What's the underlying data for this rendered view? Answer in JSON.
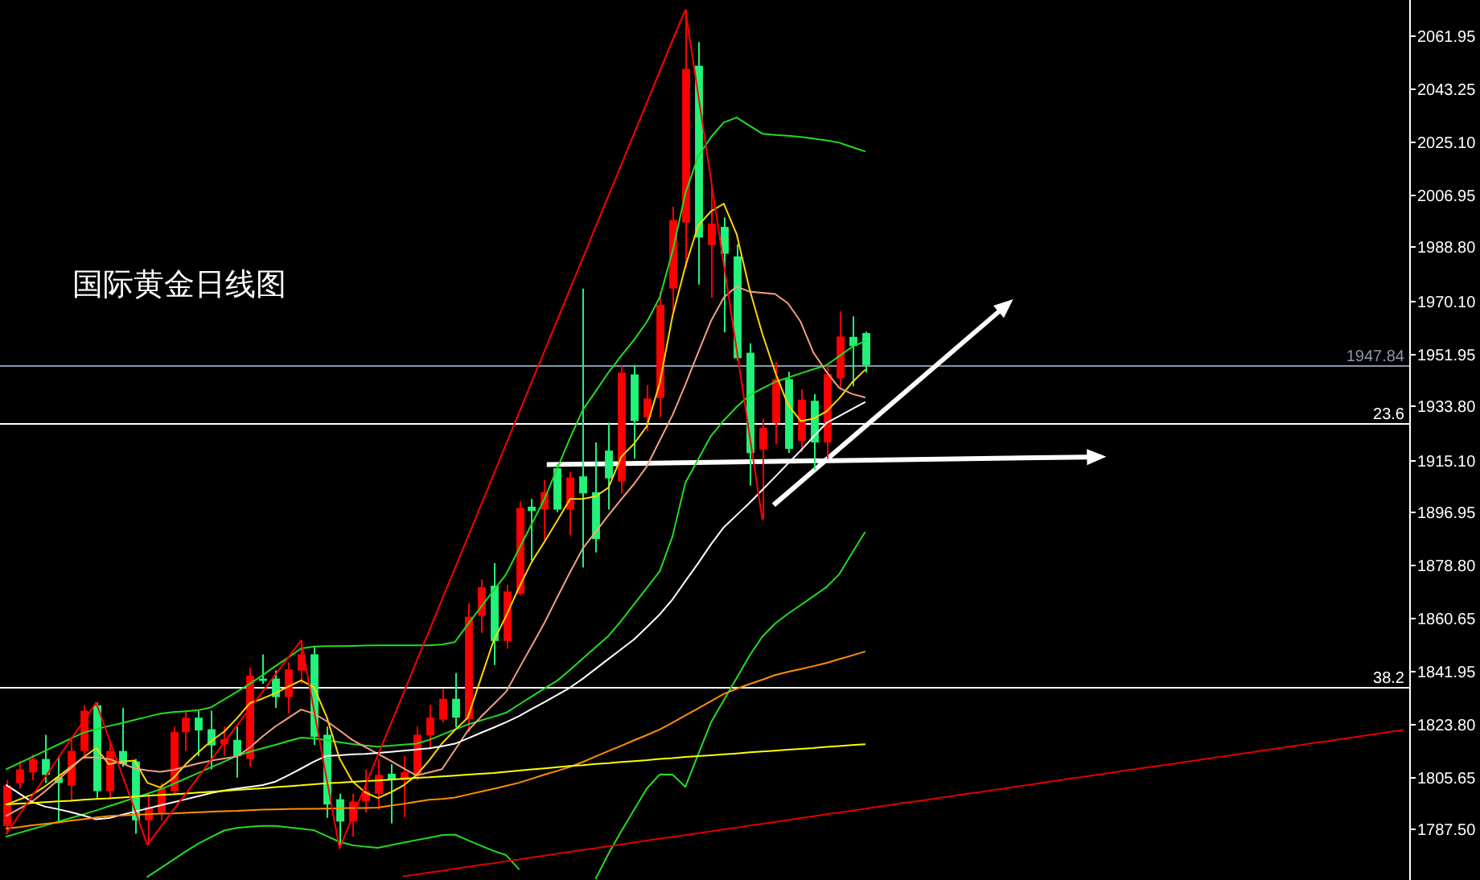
{
  "chart_data": {
    "type": "candlestick",
    "title": "国际黄金日线图",
    "categories": [
      null,
      null,
      null,
      null,
      null,
      null,
      null,
      null,
      null,
      null,
      null,
      null,
      null,
      null,
      null,
      null,
      null,
      null,
      null,
      null,
      null,
      null,
      null,
      null,
      null,
      null,
      null,
      null,
      null,
      null,
      null,
      null,
      null,
      null,
      null,
      null,
      null,
      null,
      null,
      null,
      null,
      null,
      null,
      null,
      null,
      null,
      null,
      null,
      null,
      null,
      null,
      null,
      null,
      null,
      null,
      null,
      null,
      null,
      null,
      null,
      null,
      null,
      null,
      null,
      null,
      null,
      null,
      null,
      null,
      null,
      null,
      null,
      null,
      null,
      null,
      null,
      null,
      null,
      null,
      null,
      null,
      null,
      null,
      null,
      null,
      null,
      null,
      null,
      null,
      null,
      null,
      null,
      null,
      null,
      null,
      null,
      null,
      null,
      null,
      null,
      null,
      null,
      null,
      null,
      null,
      null,
      null,
      null,
      null,
      null
    ],
    "ohlc": [
      [
        1788.6,
        1804.4,
        1785.9,
        1802.5
      ],
      [
        1803.4,
        1811.0,
        1801.6,
        1808.1
      ],
      [
        1807.1,
        1813.2,
        1804.4,
        1811.7
      ],
      [
        1811.7,
        1820.1,
        1803.4,
        1806.2
      ],
      [
        1805.3,
        1812.7,
        1789.5,
        1803.4
      ],
      [
        1802.5,
        1819.4,
        1797.1,
        1814.5
      ],
      [
        1814.5,
        1830.3,
        1811.7,
        1828.4
      ],
      [
        1830.3,
        1831.2,
        1797.8,
        1800.6
      ],
      [
        1800.6,
        1817.3,
        1797.8,
        1814.5
      ],
      [
        1814.5,
        1829.4,
        1809.0,
        1809.9
      ],
      [
        1810.9,
        1811.7,
        1785.9,
        1790.5
      ],
      [
        1790.5,
        1799.7,
        1782.1,
        1795.1
      ],
      [
        1793.2,
        1803.4,
        1790.5,
        1801.6
      ],
      [
        1800.6,
        1822.9,
        1799.7,
        1821.0
      ],
      [
        1821.0,
        1828.4,
        1814.5,
        1826.0
      ],
      [
        1826.0,
        1828.4,
        1812.7,
        1821.6
      ],
      [
        1822.0,
        1828.4,
        1808.1,
        1816.4
      ],
      [
        1816.8,
        1822.9,
        1812.7,
        1818.6
      ],
      [
        1818.3,
        1822.9,
        1805.3,
        1812.7
      ],
      [
        1811.7,
        1843.3,
        1809.0,
        1840.5
      ],
      [
        1839.5,
        1847.9,
        1837.7,
        1838.7
      ],
      [
        1839.5,
        1842.3,
        1829.4,
        1833.1
      ],
      [
        1833.1,
        1845.1,
        1827.5,
        1842.7
      ],
      [
        1842.3,
        1852.7,
        1837.7,
        1847.9
      ],
      [
        1847.9,
        1850.7,
        1816.6,
        1819.4
      ],
      [
        1820.1,
        1822.9,
        1791.4,
        1796.0
      ],
      [
        1797.8,
        1799.7,
        1781.2,
        1790.1
      ],
      [
        1790.1,
        1799.7,
        1784.9,
        1797.0
      ],
      [
        1797.1,
        1808.1,
        1793.2,
        1800.6
      ],
      [
        1799.7,
        1811.6,
        1794.3,
        1806.2
      ],
      [
        1806.6,
        1809.9,
        1789.5,
        1804.4
      ],
      [
        1804.4,
        1812.7,
        1791.6,
        1807.1
      ],
      [
        1806.2,
        1822.9,
        1804.4,
        1820.1
      ],
      [
        1819.9,
        1830.5,
        1814.9,
        1826.0
      ],
      [
        1825.3,
        1835.9,
        1824.4,
        1832.5
      ],
      [
        1832.5,
        1841.4,
        1822.7,
        1826.0
      ],
      [
        1825.6,
        1865.5,
        1821.0,
        1860.9
      ],
      [
        1861.2,
        1873.8,
        1855.3,
        1871.1
      ],
      [
        1871.6,
        1879.4,
        1844.2,
        1852.5
      ],
      [
        1852.5,
        1872.0,
        1849.8,
        1869.6
      ],
      [
        1868.8,
        1900.7,
        1868.3,
        1898.5
      ],
      [
        1898.9,
        1901.6,
        1880.3,
        1897.4
      ],
      [
        1897.9,
        1908.1,
        1887.3,
        1903.9
      ],
      [
        1912.2,
        1913.7,
        1897.0,
        1897.9
      ],
      [
        1897.9,
        1910.9,
        1889.0,
        1909.0
      ],
      [
        1909.4,
        1974.3,
        1877.9,
        1903.5
      ],
      [
        1903.9,
        1921.1,
        1883.1,
        1887.7
      ],
      [
        1918.3,
        1927.9,
        1897.9,
        1908.7
      ],
      [
        1907.6,
        1947.6,
        1903.5,
        1945.2
      ],
      [
        1944.6,
        1947.9,
        1915.5,
        1928.5
      ],
      [
        1929.8,
        1940.9,
        1925.0,
        1936.3
      ],
      [
        1936.5,
        1973.0,
        1929.8,
        1968.7
      ],
      [
        1974.3,
        2002.6,
        1966.5,
        1998.0
      ],
      [
        1997.1,
        2070.6,
        1981.3,
        2050.2
      ],
      [
        2051.3,
        2059.5,
        1975.7,
        1991.9
      ],
      [
        1989.3,
        2010.0,
        1971.1,
        1996.7
      ],
      [
        1995.6,
        1998.9,
        1959.1,
        1986.3
      ],
      [
        1985.4,
        1989.6,
        1949.4,
        1950.2
      ],
      [
        1952.1,
        1955.4,
        1906.2,
        1917.4
      ],
      [
        1918.7,
        1929.4,
        1894.6,
        1926.1
      ],
      [
        1927.8,
        1948.9,
        1920.5,
        1943.0
      ],
      [
        1943.0,
        1945.5,
        1917.4,
        1918.9
      ],
      [
        1921.6,
        1939.4,
        1917.8,
        1935.9
      ],
      [
        1935.5,
        1937.8,
        1911.6,
        1921.1
      ],
      [
        1921.1,
        1948.3,
        1915.5,
        1944.7
      ],
      [
        1943.3,
        1966.4,
        1939.4,
        1957.7
      ],
      [
        1957.6,
        1964.7,
        1940.5,
        1954.4
      ],
      [
        1958.9,
        1959.4,
        1945.2,
        1947.84
      ],
      null,
      null,
      null,
      null,
      null,
      null,
      null,
      null,
      null,
      null,
      null,
      null,
      null,
      null,
      null,
      null,
      null,
      null,
      null,
      null,
      null,
      null,
      null,
      null,
      null,
      null,
      null,
      null,
      null,
      null,
      null,
      null,
      null,
      null,
      null,
      null,
      null,
      null,
      null,
      null,
      null,
      null
    ],
    "colors": [
      "#ff0000",
      "#ff0000",
      "#ff0000",
      "#22f27a",
      "#22f27a",
      "#ff0000",
      "#ff0000",
      "#22f27a",
      "#ff0000",
      "#22f27a",
      "#22f27a",
      "#ff0000",
      "#ff0000",
      "#ff0000",
      "#ff0000",
      "#22f27a",
      "#22f27a",
      "#ff0000",
      "#22f27a",
      "#ff0000",
      "#22f27a",
      "#22f27a",
      "#ff0000",
      "#ff0000",
      "#22f27a",
      "#22f27a",
      "#22f27a",
      "#ff0000",
      "#ff0000",
      "#ff0000",
      "#22f27a",
      "#ff0000",
      "#ff0000",
      "#ff0000",
      "#ff0000",
      "#22f27a",
      "#ff0000",
      "#ff0000",
      "#22f27a",
      "#ff0000",
      "#ff0000",
      "#22f27a",
      "#ff0000",
      "#22f27a",
      "#ff0000",
      "#22f27a",
      "#22f27a",
      "#22f27a",
      "#ff0000",
      "#22f27a",
      "#ff0000",
      "#ff0000",
      "#ff0000",
      "#ff0000",
      "#22f27a",
      "#ff0000",
      "#22f27a",
      "#22f27a",
      "#22f27a",
      "#ff0000",
      "#ff0000",
      "#22f27a",
      "#ff0000",
      "#22f27a",
      "#ff0000",
      "#ff0000",
      "#22f27a",
      "#22f27a",
      null,
      null,
      null,
      null,
      null,
      null,
      null,
      null,
      null,
      null,
      null,
      null,
      null,
      null,
      null,
      null,
      null,
      null,
      null,
      null,
      null,
      null,
      null,
      null,
      null,
      null,
      null,
      null,
      null,
      null,
      null,
      null,
      null,
      null,
      null,
      null,
      null,
      null,
      null,
      null,
      null,
      null
    ],
    "series": [
      {
        "type": "line",
        "color": "#22dd22",
        "values": [
          1808.2,
          1810.3,
          1812.4,
          1814.5,
          1816.6,
          1818.7,
          1820.8,
          1822.0,
          1823.1,
          1824.1,
          1825.2,
          1826.3,
          1827.4,
          1827.9,
          1828.2,
          1828.6,
          1829.6,
          1832.3,
          1835.0,
          1837.7,
          1840.7,
          1843.8,
          1846.8,
          1849.9,
          1850.6,
          1850.7,
          1850.7,
          1850.8,
          1850.9,
          1851.0,
          1851.0,
          1851.0,
          1851.0,
          1851.0,
          1851.3,
          1852.1,
          1858.1,
          1864.0,
          1869.8,
          1875.5,
          1884.2,
          1892.9,
          1901.6,
          1912.1,
          1922.7,
          1932.4,
          1938.8,
          1945.3,
          1951.1,
          1956.6,
          1962.8,
          1971.3,
          1987.2,
          2007.2,
          2020.0,
          2026.6,
          2031.7,
          2033.4,
          2030.6,
          2027.8,
          2027.4,
          2027.1,
          2026.7,
          2026.1,
          2025.5,
          2024.7,
          2023.2,
          2021.7,
          null,
          null,
          null,
          null,
          null,
          null,
          null,
          null,
          null,
          null,
          null,
          null,
          null,
          null,
          null,
          null,
          null,
          null,
          null,
          null,
          null,
          null,
          null,
          null,
          null,
          null,
          null,
          null,
          null,
          null,
          null,
          null,
          null,
          null,
          null,
          null,
          null,
          null,
          null,
          null,
          null,
          null
        ]
      },
      {
        "type": "line",
        "color": "#22dd22",
        "values": [
          1784.9,
          1786.2,
          1787.5,
          1788.7,
          1790.0,
          1791.3,
          1792.6,
          1793.9,
          1795.4,
          1796.8,
          1798.3,
          1799.7,
          1801.2,
          1803.0,
          1805.0,
          1806.9,
          1808.9,
          1810.8,
          1812.8,
          1814.2,
          1815.4,
          1816.6,
          1817.9,
          1819.1,
          1818.8,
          1818.2,
          1817.5,
          1816.9,
          1816.4,
          1816.0,
          1816.3,
          1816.7,
          1817.0,
          1818.3,
          1820.1,
          1821.9,
          1823.6,
          1825.0,
          1826.3,
          1827.7,
          1830.5,
          1833.3,
          1836.1,
          1838.8,
          1842.5,
          1846.5,
          1850.4,
          1854.3,
          1859.5,
          1865.2,
          1870.9,
          1876.6,
          1888.7,
          1907.2,
          1915.3,
          1923.4,
          1928.7,
          1933.4,
          1937.4,
          1939.8,
          1942.0,
          1943.5,
          1945.0,
          1946.4,
          1947.8,
          1950.9,
          1954.1,
          1956.1,
          null,
          null,
          null,
          null,
          null,
          null,
          null,
          null,
          null,
          null,
          null,
          null,
          null,
          null,
          null,
          null,
          null,
          null,
          null,
          null,
          null,
          null,
          null,
          null,
          null,
          null,
          null,
          null,
          null,
          null,
          null,
          null,
          null,
          null,
          null,
          null,
          null,
          null,
          null,
          null,
          null,
          null
        ]
      },
      {
        "type": "line",
        "color": "#22dd22",
        "values": [
          null,
          null,
          null,
          null,
          null,
          null,
          null,
          null,
          null,
          null,
          null,
          1771.0,
          1773.9,
          1776.8,
          1779.8,
          1782.5,
          1784.8,
          1787.0,
          1787.9,
          1788.3,
          1788.6,
          1788.6,
          1788.1,
          1787.6,
          1787.1,
          1785.1,
          1783.1,
          1781.9,
          1781.4,
          1781.0,
          1781.9,
          1782.8,
          1783.7,
          1784.5,
          1785.4,
          1785.6,
          1783.7,
          1781.8,
          1780.0,
          1778.5,
          1773.7,
          null,
          null,
          null,
          null,
          null,
          1770.4,
          1779.0,
          1786.8,
          1794.2,
          1801.6,
          1806.4,
          1806.3,
          1802.1,
          1813.3,
          1824.4,
          1832.1,
          1839.7,
          1847.4,
          1854.0,
          1858.5,
          1861.9,
          1864.9,
          1868.0,
          1871.1,
          1875.5,
          1882.8,
          1890.0,
          null,
          null,
          null,
          null,
          null,
          null,
          null,
          null,
          null,
          null,
          null,
          null,
          null,
          null,
          null,
          null,
          null,
          null,
          null,
          null,
          null,
          null,
          null,
          null,
          null,
          null,
          null,
          null,
          null,
          null,
          null,
          null,
          null,
          null,
          null,
          null,
          null,
          null,
          null,
          null,
          null,
          null
        ]
      },
      {
        "type": "line",
        "color": "#ffd800",
        "values": [
          1796.0,
          1797.7,
          1799.4,
          1802.2,
          1805.5,
          1808.9,
          1812.2,
          1815.5,
          1809.9,
          1810.8,
          1811.2,
          1803.5,
          1801.9,
          1805.0,
          1809.9,
          1814.1,
          1818.0,
          1821.2,
          1825.8,
          1831.0,
          1832.6,
          1834.5,
          1836.7,
          1838.9,
          1836.6,
          1826.3,
          1811.9,
          1804.0,
          1800.2,
          1798.2,
          1800.2,
          1802.6,
          1806.1,
          1811.2,
          1817.1,
          1821.7,
          1825.9,
          1839.1,
          1852.2,
          1861.1,
          1870.9,
          1879.8,
          1886.8,
          1894.1,
          1901.6,
          1901.6,
          1902.5,
          1905.5,
          1916.2,
          1920.7,
          1926.8,
          1941.7,
          1964.9,
          1982.0,
          1996.1,
          2001.0,
          2003.6,
          1993.1,
          1974.2,
          1958.7,
          1945.5,
          1934.2,
          1928.5,
          1929.3,
          1931.8,
          1936.3,
          1941.8,
          1946.1,
          null,
          null,
          null,
          null,
          null,
          null,
          null,
          null,
          null,
          null,
          null,
          null,
          null,
          null,
          null,
          null,
          null,
          null,
          null,
          null,
          null,
          null,
          null,
          null,
          null,
          null,
          null,
          null,
          null,
          null,
          null,
          null,
          null,
          null,
          null,
          null,
          null,
          null,
          null,
          null,
          null,
          null
        ]
      },
      {
        "type": "line",
        "color": "#f5a080",
        "values": [
          1792.1,
          1794.5,
          1797.0,
          1800.5,
          1804.4,
          1808.4,
          1812.3,
          1812.2,
          1811.7,
          1810.2,
          1808.5,
          1807.8,
          1807.3,
          1807.9,
          1809.1,
          1810.2,
          1811.2,
          1811.9,
          1812.6,
          1815.7,
          1819.5,
          1823.0,
          1825.9,
          1828.8,
          1827.4,
          1824.8,
          1821.6,
          1818.3,
          1815.9,
          1813.5,
          1811.1,
          1808.5,
          1806.0,
          1807.1,
          1808.2,
          1814.8,
          1821.4,
          1826.1,
          1830.5,
          1834.9,
          1842.9,
          1850.8,
          1858.8,
          1867.6,
          1876.3,
          1884.5,
          1890.2,
          1896.0,
          1901.5,
          1906.8,
          1912.9,
          1921.8,
          1930.6,
          1941.1,
          1952.2,
          1963.1,
          1971.2,
          1975.0,
          1973.2,
          1972.8,
          1972.4,
          1969.2,
          1962.8,
          1952.1,
          1945.6,
          1940.0,
          1937.9,
          1936.7,
          null,
          null,
          null,
          null,
          null,
          null,
          null,
          null,
          null,
          null,
          null,
          null,
          null,
          null,
          null,
          null,
          null,
          null,
          null,
          null,
          null,
          null,
          null,
          null,
          null,
          null,
          null,
          null,
          null,
          null,
          null,
          null,
          null,
          null,
          null,
          null,
          null,
          null,
          null,
          null,
          null,
          null
        ]
      },
      {
        "type": "line",
        "color": "#ffffff",
        "values": [
          1802.7,
          1799.8,
          1796.9,
          1795.3,
          1794.4,
          1793.4,
          1792.2,
          1790.9,
          1791.3,
          1792.4,
          1793.5,
          1794.6,
          1795.7,
          1796.7,
          1797.8,
          1798.9,
          1800.0,
          1800.8,
          1801.5,
          1802.1,
          1802.7,
          1803.9,
          1806.1,
          1808.4,
          1810.8,
          1812.8,
          1813.0,
          1813.3,
          1813.5,
          1813.8,
          1814.2,
          1814.6,
          1815.0,
          1815.4,
          1816.1,
          1817.0,
          1818.8,
          1820.7,
          1822.5,
          1824.4,
          1826.5,
          1829.0,
          1831.4,
          1833.9,
          1836.4,
          1839.5,
          1842.9,
          1846.3,
          1849.7,
          1853.1,
          1857.3,
          1861.7,
          1866.9,
          1873.2,
          1879.4,
          1885.9,
          1891.8,
          1896.0,
          1900.2,
          1904.7,
          1909.2,
          1913.8,
          1918.3,
          1923.1,
          1927.8,
          1930.2,
          1932.6,
          1935.0,
          null,
          null,
          null,
          null,
          null,
          null,
          null,
          null,
          null,
          null,
          null,
          null,
          null,
          null,
          null,
          null,
          null,
          null,
          null,
          null,
          null,
          null,
          null,
          null,
          null,
          null,
          null,
          null,
          null,
          null,
          null,
          null,
          null,
          null,
          null,
          null,
          null,
          null,
          null,
          null,
          null,
          null
        ]
      },
      {
        "type": "line",
        "color": "#ff9000",
        "values": [
          1787.7,
          1788.2,
          1788.8,
          1789.3,
          1789.8,
          1790.4,
          1790.9,
          1791.5,
          1792.0,
          1792.2,
          1792.4,
          1792.6,
          1792.8,
          1792.9,
          1793.1,
          1793.3,
          1793.5,
          1793.7,
          1793.8,
          1794.0,
          1794.2,
          1794.3,
          1794.4,
          1794.5,
          1794.5,
          1794.6,
          1794.7,
          1794.8,
          1794.8,
          1794.9,
          1795.6,
          1796.2,
          1796.9,
          1797.6,
          1797.9,
          1798.4,
          1799.4,
          1800.4,
          1801.4,
          1802.4,
          1803.5,
          1804.9,
          1806.3,
          1807.6,
          1809.0,
          1810.7,
          1812.6,
          1814.5,
          1816.3,
          1818.2,
          1820.0,
          1821.9,
          1824.3,
          1826.8,
          1829.2,
          1831.7,
          1834.2,
          1836.0,
          1837.6,
          1839.1,
          1840.7,
          1841.8,
          1842.8,
          1843.8,
          1844.9,
          1846.2,
          1847.5,
          1848.8,
          null,
          null,
          null,
          null,
          null,
          null,
          null,
          null,
          null,
          null,
          null,
          null,
          null,
          null,
          null,
          null,
          null,
          null,
          null,
          null,
          null,
          null,
          null,
          null,
          null,
          null,
          null,
          null,
          null,
          null,
          null,
          null,
          null,
          null,
          null,
          null,
          null,
          null,
          null,
          null,
          null,
          null
        ]
      },
      {
        "type": "line",
        "color": "#ffff00",
        "values": [
          1796.0,
          1796.3,
          1796.5,
          1796.8,
          1797.1,
          1797.3,
          1797.6,
          1797.9,
          1798.1,
          1798.4,
          1798.7,
          1799.0,
          1799.3,
          1799.5,
          1799.8,
          1800.1,
          1800.4,
          1800.7,
          1801.0,
          1801.3,
          1801.6,
          1802.0,
          1802.3,
          1802.6,
          1803.0,
          1803.3,
          1803.5,
          1803.8,
          1804.1,
          1804.3,
          1804.6,
          1804.9,
          1805.2,
          1805.4,
          1805.7,
          1806.0,
          1806.3,
          1806.6,
          1806.9,
          1807.3,
          1807.7,
          1808.1,
          1808.5,
          1808.9,
          1809.3,
          1809.6,
          1810.0,
          1810.3,
          1810.7,
          1811.0,
          1811.3,
          1811.7,
          1812.0,
          1812.4,
          1812.7,
          1813.0,
          1813.3,
          1813.6,
          1814.0,
          1814.3,
          1814.6,
          1814.9,
          1815.2,
          1815.5,
          1815.9,
          1816.2,
          1816.5,
          1816.8,
          null,
          null,
          null,
          null,
          null,
          null,
          null,
          null,
          null,
          null,
          null,
          null,
          null,
          null,
          null,
          null,
          null,
          null,
          null,
          null,
          null,
          null,
          null,
          null,
          null,
          null,
          null,
          null,
          null,
          null,
          null,
          null,
          null,
          null,
          null,
          null,
          null,
          null,
          null,
          null,
          null,
          null
        ]
      },
      {
        "type": "line",
        "color": "#ff0000",
        "values": [
          1785.9,
          1792.4,
          1798.8,
          1805.3,
          1811.8,
          1818.3,
          1824.7,
          1831.2,
          1818.9,
          1806.7,
          1794.4,
          1782.1,
          1788.0,
          1793.9,
          1799.7,
          1805.6,
          1811.5,
          1817.4,
          1823.3,
          1829.2,
          1835.0,
          1840.9,
          1846.8,
          1852.7,
          1828.8,
          1804.8,
          1780.8,
          1791.6,
          1802.3,
          1813.1,
          1823.8,
          1834.5,
          1845.3,
          1856.0,
          1866.8,
          1877.5,
          1888.2,
          1899.0,
          1909.7,
          1920.5,
          1931.2,
          1942.0,
          1952.7,
          1963.4,
          1974.2,
          1984.9,
          1995.7,
          2006.4,
          2017.1,
          2027.9,
          2038.6,
          2049.4,
          2060.1,
          2070.6,
          2041.3,
          2011.9,
          1982.6,
          1953.3,
          1923.9,
          1894.6,
          null,
          null,
          null,
          null,
          null,
          null,
          null,
          null,
          null,
          null,
          null,
          null,
          null,
          null,
          null,
          null,
          null,
          null,
          null,
          null,
          null,
          null,
          null,
          null,
          null,
          null,
          null,
          null,
          null,
          null,
          null,
          null,
          null,
          null,
          null,
          null,
          null,
          null,
          null,
          null,
          null,
          null,
          null,
          null,
          null,
          null,
          null,
          null,
          null,
          null
        ]
      },
      {
        "type": "line",
        "color": "#e00000",
        "values": [
          null,
          null,
          null,
          null,
          null,
          null,
          null,
          null,
          null,
          null,
          null,
          null,
          null,
          null,
          null,
          null,
          null,
          null,
          null,
          null,
          null,
          null,
          null,
          null,
          null,
          null,
          null,
          null,
          null,
          null,
          null,
          1771.2,
          1771.8,
          1772.5,
          1773.1,
          1773.8,
          1774.4,
          1775.1,
          1775.7,
          1776.4,
          1777.0,
          1777.7,
          1778.3,
          1779.0,
          1779.6,
          1780.3,
          1780.9,
          1781.6,
          1782.2,
          1782.9,
          1783.5,
          1784.2,
          1784.8,
          1785.4,
          1786.1,
          1786.7,
          1787.4,
          1788.0,
          1788.7,
          1789.3,
          1790.0,
          1790.6,
          1791.3,
          1791.9,
          1792.6,
          1793.2,
          1793.9,
          1794.5,
          1795.2,
          1795.8,
          1796.5,
          1797.1,
          1797.7,
          1798.4,
          1799.0,
          1799.7,
          1800.3,
          1801.0,
          1801.6,
          1802.3,
          1802.9,
          1803.6,
          1804.2,
          1804.9,
          1805.5,
          1806.2,
          1806.8,
          1807.5,
          1808.1,
          1808.8,
          1809.4,
          1810.0,
          1810.7,
          1811.3,
          1812.0,
          1812.6,
          1813.3,
          1813.9,
          1814.6,
          1815.2,
          1815.9,
          1816.5,
          1817.2,
          1817.8,
          1818.5,
          1819.1,
          1819.8,
          1820.4,
          1821.1,
          1821.7
        ]
      }
    ],
    "ylim": [
      1769.9,
      2074.0
    ],
    "yticks": [
      2061.95,
      2043.25,
      {
        "value": 2025.1,
        "label": "2025.10"
      },
      2006.95,
      {
        "value": 1988.8,
        "label": "1988.80"
      },
      {
        "value": 1970.1,
        "label": "1970.10"
      },
      1951.95,
      {
        "value": 1933.8,
        "label": "1933.80"
      },
      {
        "value": 1915.1,
        "label": "1915.10"
      },
      1896.95,
      {
        "value": 1878.8,
        "label": "1878.80"
      },
      1860.65,
      1841.95,
      {
        "value": 1823.8,
        "label": "1823.80"
      },
      1805.65,
      {
        "value": 1787.5,
        "label": "1787.50"
      }
    ],
    "tick_labels": "y",
    "ref_lines": [
      {
        "axis": "y",
        "value": 1947.84,
        "label": "1947.84",
        "color": "#8899aa"
      },
      {
        "axis": "y",
        "value": 1927.7,
        "color": "#ffffff"
      },
      {
        "axis": "y",
        "value": 1836.4,
        "color": "#ffffff"
      }
    ],
    "annotations": [
      {
        "text": "23.6",
        "y": 1927.7
      },
      {
        "text": "38.2",
        "y": 1836.4
      }
    ]
  }
}
